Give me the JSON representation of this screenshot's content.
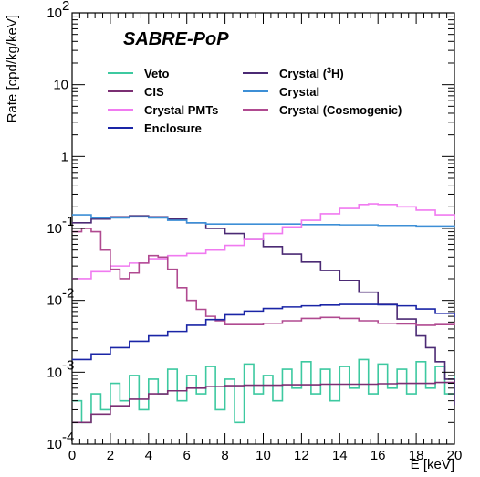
{
  "chart_data": {
    "type": "line",
    "title": "SABRE-PoP",
    "xlabel": "E [keV]",
    "ylabel": "Rate [cpd/kg/keV]",
    "xlim": [
      0,
      20
    ],
    "ylim": [
      0.0001,
      100
    ],
    "yscale": "log",
    "grid": false,
    "legend_position": "top-left",
    "x_ticks": [
      "0",
      "2",
      "4",
      "6",
      "8",
      "10",
      "12",
      "14",
      "16",
      "18",
      "20"
    ],
    "y_ticks": [
      {
        "value": 0.0001,
        "base": "10",
        "exp": "-4"
      },
      {
        "value": 0.001,
        "base": "10",
        "exp": "-3"
      },
      {
        "value": 0.01,
        "base": "10",
        "exp": "-2"
      },
      {
        "value": 0.1,
        "base": "10",
        "exp": "-1"
      },
      {
        "value": 1,
        "base": "1",
        "exp": ""
      },
      {
        "value": 10,
        "base": "10",
        "exp": ""
      },
      {
        "value": 100,
        "base": "10",
        "exp": "2"
      }
    ],
    "series": [
      {
        "name": "Veto",
        "color": "#3dc9a0",
        "x": [
          0,
          0.5,
          1,
          1.5,
          2,
          2.5,
          3,
          3.5,
          4,
          4.5,
          5,
          5.5,
          6,
          6.5,
          7,
          7.5,
          8,
          8.5,
          9,
          9.5,
          10,
          10.5,
          11,
          11.5,
          12,
          12.5,
          13,
          13.5,
          14,
          14.5,
          15,
          15.5,
          16,
          16.5,
          17,
          17.5,
          18,
          18.5,
          19,
          19.5,
          20
        ],
        "y": [
          0.0004,
          0.0002,
          0.0005,
          0.0003,
          0.0007,
          0.0004,
          0.0009,
          0.0003,
          0.0008,
          0.0005,
          0.0011,
          0.0004,
          0.0009,
          0.0005,
          0.0012,
          0.0003,
          0.0008,
          0.0002,
          0.0013,
          0.0005,
          0.0009,
          0.0004,
          0.0011,
          0.0006,
          0.0014,
          0.0005,
          0.0011,
          0.0004,
          0.0012,
          0.0006,
          0.0015,
          0.0005,
          0.0013,
          0.0006,
          0.0011,
          0.0005,
          0.0014,
          0.0006,
          0.0012,
          0.0005,
          0.0009
        ]
      },
      {
        "name": "Crystal (³H)",
        "color": "#4b2a74",
        "x": [
          0,
          1,
          2,
          3,
          4,
          5,
          6,
          7,
          8,
          9,
          10,
          11,
          12,
          13,
          14,
          15,
          16,
          17,
          18,
          18.5,
          19,
          19.5,
          20
        ],
        "y": [
          0.12,
          0.135,
          0.145,
          0.15,
          0.145,
          0.135,
          0.12,
          0.1,
          0.085,
          0.07,
          0.056,
          0.044,
          0.034,
          0.026,
          0.019,
          0.013,
          0.0088,
          0.0055,
          0.0032,
          0.0022,
          0.0014,
          0.0008,
          0.00035
        ]
      },
      {
        "name": "CIS",
        "color": "#7b2f73",
        "x": [
          0,
          1,
          2,
          3,
          4,
          5,
          6,
          7,
          8,
          9,
          10,
          11,
          12,
          13,
          14,
          15,
          16,
          17,
          18,
          19,
          20
        ],
        "y": [
          0.0002,
          0.00026,
          0.00034,
          0.00042,
          0.0005,
          0.00055,
          0.0006,
          0.00063,
          0.00065,
          0.00066,
          0.00066,
          0.00067,
          0.00067,
          0.00068,
          0.00068,
          0.00068,
          0.00069,
          0.0007,
          0.0007,
          0.00072,
          0.00075
        ]
      },
      {
        "name": "Crystal",
        "color": "#3d8fd6",
        "x": [
          0,
          1,
          2,
          3,
          4,
          5,
          6,
          7,
          8,
          9,
          10,
          12,
          14,
          16,
          18,
          20
        ],
        "y": [
          0.155,
          0.14,
          0.14,
          0.145,
          0.14,
          0.13,
          0.12,
          0.115,
          0.115,
          0.115,
          0.115,
          0.113,
          0.112,
          0.11,
          0.108,
          0.105
        ]
      },
      {
        "name": "Crystal PMTs",
        "color": "#f07af0",
        "x": [
          0,
          1,
          2,
          3,
          4,
          5,
          6,
          7,
          8,
          9,
          10,
          11,
          12,
          13,
          14,
          15,
          15.5,
          16,
          17,
          18,
          19,
          20
        ],
        "y": [
          0.02,
          0.025,
          0.03,
          0.033,
          0.038,
          0.042,
          0.045,
          0.05,
          0.058,
          0.07,
          0.085,
          0.105,
          0.13,
          0.16,
          0.19,
          0.215,
          0.22,
          0.215,
          0.2,
          0.18,
          0.155,
          0.13
        ]
      },
      {
        "name": "Crystal (Cosmogenic)",
        "color": "#b04a90",
        "x": [
          0,
          0.5,
          1,
          1.5,
          2,
          2.5,
          3,
          3.5,
          4,
          4.5,
          5,
          5.5,
          6,
          6.5,
          7,
          7.5,
          8,
          9,
          10,
          11,
          12,
          13,
          14,
          15,
          16,
          17,
          18,
          19,
          20
        ],
        "y": [
          0.09,
          0.1,
          0.09,
          0.05,
          0.027,
          0.02,
          0.024,
          0.033,
          0.042,
          0.04,
          0.027,
          0.015,
          0.01,
          0.0075,
          0.006,
          0.0052,
          0.0046,
          0.0046,
          0.0048,
          0.0052,
          0.0056,
          0.0058,
          0.0056,
          0.0052,
          0.0048,
          0.0047,
          0.0045,
          0.0046,
          0.005
        ]
      },
      {
        "name": "Enclosure",
        "color": "#1a25a6",
        "x": [
          0,
          1,
          2,
          3,
          4,
          5,
          6,
          7,
          8,
          9,
          10,
          11,
          12,
          13,
          14,
          15,
          16,
          17,
          18,
          19,
          20
        ],
        "y": [
          0.0015,
          0.0018,
          0.0022,
          0.0027,
          0.0032,
          0.0037,
          0.0045,
          0.0054,
          0.0063,
          0.0071,
          0.0077,
          0.0081,
          0.0084,
          0.0086,
          0.0088,
          0.0088,
          0.0087,
          0.0084,
          0.0076,
          0.0066,
          0.0058
        ]
      }
    ],
    "legend": [
      {
        "label": "Veto",
        "color": "#3dc9a0"
      },
      {
        "label": "Crystal (",
        "sup": "3",
        "label_end": "H)",
        "color": "#4b2a74"
      },
      {
        "label": "CIS",
        "color": "#7b2f73"
      },
      {
        "label": "Crystal",
        "color": "#3d8fd6"
      },
      {
        "label": "Crystal PMTs",
        "color": "#f07af0"
      },
      {
        "label": "Crystal (Cosmogenic)",
        "color": "#b04a90"
      },
      {
        "label": "Enclosure",
        "color": "#1a25a6"
      }
    ]
  }
}
